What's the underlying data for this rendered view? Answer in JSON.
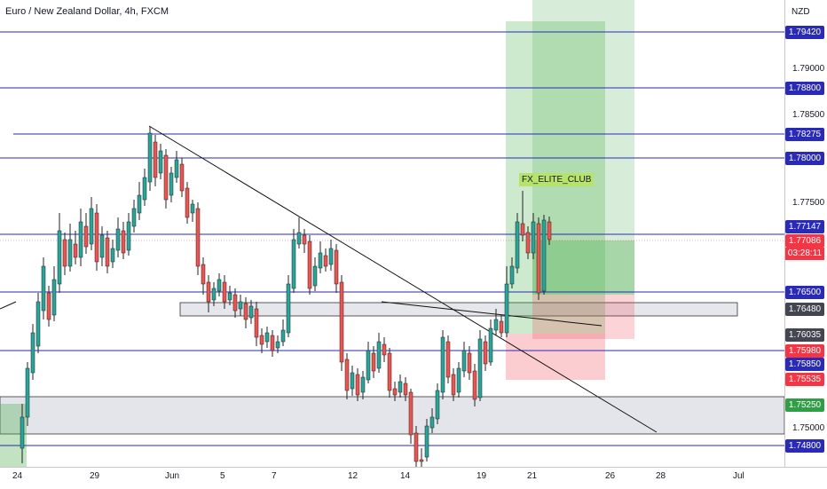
{
  "header": {
    "symbol_title": "Euro / New Zealand Dollar, 4h, FXCM"
  },
  "price_axis": {
    "currency": "NZD",
    "ticks": [
      "1.79000",
      "1.78500",
      "1.77500",
      "1.75000"
    ],
    "level_labels": [
      "1.79420",
      "1.78800",
      "1.78275",
      "1.78000",
      "1.77147",
      "1.76500",
      "1.76480",
      "1.76035",
      "1.75980",
      "1.75850",
      "1.75535",
      "1.75250",
      "1.74800"
    ],
    "current_price": "1.77086",
    "countdown": "03:28:11"
  },
  "time_axis": {
    "labels": [
      "24",
      "29",
      "Jun",
      "5",
      "7",
      "12",
      "14",
      "19",
      "21",
      "26",
      "28",
      "Jul"
    ]
  },
  "annotation": {
    "text": "FX_ELITE_CLUB"
  },
  "colors": {
    "level_line": "#2a2ab8",
    "bull_candle": "#26a69a",
    "bear_candle": "#ef5350",
    "target_zone": "#4caf50",
    "stop_zone": "#f23645",
    "zone_gray": "#d1d4dc"
  }
}
